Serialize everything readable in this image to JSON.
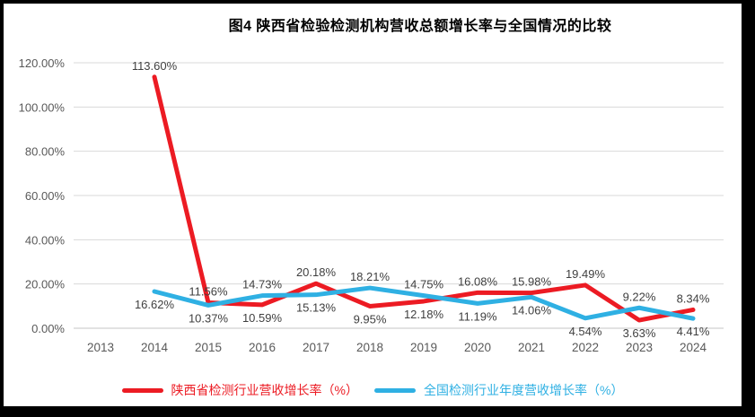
{
  "title": "图4 陕西省检验检测机构营收总额增长率与全国情况的比较",
  "colors": {
    "background": "#FFFFFF",
    "frame": "#000000",
    "grid": "#D9D9D9",
    "axis_line": "#C6C6C6",
    "tick_text": "#595959",
    "data_label_text": "#3F3F3F",
    "title_text": "#000000"
  },
  "chart_data": {
    "type": "line",
    "categories": [
      "2013",
      "2014",
      "2015",
      "2016",
      "2017",
      "2018",
      "2019",
      "2020",
      "2021",
      "2022",
      "2023",
      "2024"
    ],
    "series": [
      {
        "name": "陕西省检测行业营收增长率（%）",
        "color": "#EC1B23",
        "values": [
          null,
          113.6,
          11.56,
          10.59,
          20.18,
          9.95,
          12.18,
          16.08,
          15.98,
          19.49,
          3.63,
          8.34
        ]
      },
      {
        "name": "全国检测行业年度营收增长率（%）",
        "color": "#2FB0E3",
        "values": [
          null,
          16.62,
          10.37,
          14.73,
          15.13,
          18.21,
          14.75,
          11.19,
          14.06,
          4.54,
          9.22,
          4.41
        ]
      }
    ],
    "y_ticks": [
      "0.00%",
      "20.00%",
      "40.00%",
      "60.00%",
      "80.00%",
      "100.00%",
      "120.00%"
    ],
    "ylim": [
      0,
      120
    ],
    "grid": true,
    "legend_position": "bottom",
    "data_label_format": "0.00%"
  }
}
